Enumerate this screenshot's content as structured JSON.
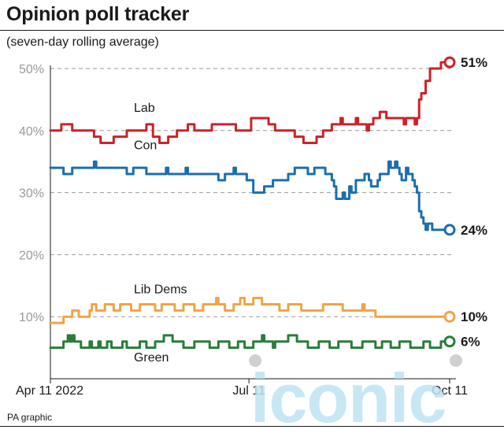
{
  "header": {
    "title": "Opinion poll tracker",
    "subtitle": "(seven-day rolling average)"
  },
  "footer": {
    "source": "PA graphic"
  },
  "watermark": {
    "text": "iconic"
  },
  "chart_data": {
    "type": "line",
    "ylim": [
      0,
      50
    ],
    "y_ticks": [
      {
        "value": 50,
        "label": "50%"
      },
      {
        "value": 40,
        "label": "40%"
      },
      {
        "value": 30,
        "label": "30%"
      },
      {
        "value": 20,
        "label": "20%"
      },
      {
        "value": 10,
        "label": "10%"
      }
    ],
    "grid": true,
    "x_ticks": [
      "Apr 11 2022",
      "Jul 11",
      "Oct 11"
    ],
    "x_range_days": [
      0,
      183
    ],
    "x_tick_days": [
      0,
      91,
      183
    ],
    "series": [
      {
        "name": "Lab",
        "color": "#cc2229",
        "end_label": "51%",
        "points": [
          [
            0,
            40
          ],
          [
            4,
            40
          ],
          [
            5,
            41
          ],
          [
            9,
            41
          ],
          [
            10,
            40
          ],
          [
            19,
            40
          ],
          [
            20,
            39
          ],
          [
            22,
            39
          ],
          [
            23,
            38
          ],
          [
            28,
            38
          ],
          [
            29,
            39
          ],
          [
            34,
            39
          ],
          [
            35,
            40
          ],
          [
            43,
            40
          ],
          [
            44,
            41
          ],
          [
            46,
            41
          ],
          [
            47,
            39
          ],
          [
            49,
            39
          ],
          [
            50,
            38
          ],
          [
            53,
            38
          ],
          [
            54,
            39
          ],
          [
            57,
            39
          ],
          [
            58,
            40
          ],
          [
            62,
            40
          ],
          [
            63,
            41
          ],
          [
            65,
            41
          ],
          [
            66,
            40
          ],
          [
            73,
            40
          ],
          [
            74,
            41
          ],
          [
            84,
            41
          ],
          [
            85,
            40
          ],
          [
            91,
            40
          ],
          [
            92,
            42
          ],
          [
            99,
            42
          ],
          [
            100,
            41
          ],
          [
            102,
            41
          ],
          [
            103,
            40
          ],
          [
            111,
            40
          ],
          [
            112,
            39
          ],
          [
            115,
            39
          ],
          [
            116,
            38
          ],
          [
            121,
            38
          ],
          [
            122,
            39
          ],
          [
            124,
            39
          ],
          [
            125,
            40
          ],
          [
            128,
            40
          ],
          [
            129,
            41
          ],
          [
            132,
            41
          ],
          [
            133,
            42
          ],
          [
            134,
            41
          ],
          [
            139,
            41
          ],
          [
            140,
            42
          ],
          [
            141,
            41
          ],
          [
            144,
            41
          ],
          [
            145,
            40
          ],
          [
            146,
            41
          ],
          [
            148,
            42
          ],
          [
            150,
            42
          ],
          [
            151,
            43
          ],
          [
            153,
            43
          ],
          [
            154,
            42
          ],
          [
            161,
            42
          ],
          [
            162,
            41
          ],
          [
            163,
            42
          ],
          [
            166,
            42
          ],
          [
            167,
            41
          ],
          [
            168,
            42
          ],
          [
            169,
            45
          ],
          [
            170,
            46
          ],
          [
            172,
            48
          ],
          [
            174,
            50
          ],
          [
            178,
            50
          ],
          [
            179,
            51
          ],
          [
            183,
            51
          ]
        ]
      },
      {
        "name": "Con",
        "color": "#1c6fad",
        "end_label": "24%",
        "points": [
          [
            0,
            34
          ],
          [
            5,
            34
          ],
          [
            6,
            33
          ],
          [
            9,
            33
          ],
          [
            10,
            34
          ],
          [
            19,
            34
          ],
          [
            20,
            35
          ],
          [
            21,
            34
          ],
          [
            34,
            34
          ],
          [
            35,
            33
          ],
          [
            37,
            33
          ],
          [
            38,
            34
          ],
          [
            43,
            34
          ],
          [
            44,
            33
          ],
          [
            52,
            33
          ],
          [
            53,
            34
          ],
          [
            54,
            33
          ],
          [
            61,
            33
          ],
          [
            62,
            34
          ],
          [
            63,
            33
          ],
          [
            76,
            33
          ],
          [
            77,
            32
          ],
          [
            79,
            32
          ],
          [
            80,
            33
          ],
          [
            83,
            33
          ],
          [
            84,
            34
          ],
          [
            85,
            33
          ],
          [
            89,
            33
          ],
          [
            90,
            32
          ],
          [
            92,
            32
          ],
          [
            93,
            30
          ],
          [
            97,
            30
          ],
          [
            98,
            31
          ],
          [
            101,
            31
          ],
          [
            102,
            32
          ],
          [
            108,
            32
          ],
          [
            109,
            33
          ],
          [
            111,
            33
          ],
          [
            112,
            34
          ],
          [
            117,
            34
          ],
          [
            118,
            33
          ],
          [
            120,
            33
          ],
          [
            121,
            34
          ],
          [
            125,
            34
          ],
          [
            126,
            33
          ],
          [
            128,
            33
          ],
          [
            129,
            32
          ],
          [
            130,
            31
          ],
          [
            131,
            29
          ],
          [
            133,
            29
          ],
          [
            134,
            30
          ],
          [
            135,
            29
          ],
          [
            137,
            31
          ],
          [
            138,
            30
          ],
          [
            140,
            32
          ],
          [
            143,
            32
          ],
          [
            144,
            33
          ],
          [
            146,
            32
          ],
          [
            147,
            31
          ],
          [
            149,
            31
          ],
          [
            150,
            32
          ],
          [
            151,
            33
          ],
          [
            154,
            33
          ],
          [
            155,
            35
          ],
          [
            156,
            34
          ],
          [
            158,
            35
          ],
          [
            159,
            34
          ],
          [
            160,
            33
          ],
          [
            161,
            32
          ],
          [
            163,
            34
          ],
          [
            164,
            33
          ],
          [
            166,
            32
          ],
          [
            167,
            31
          ],
          [
            168,
            30
          ],
          [
            169,
            27
          ],
          [
            170,
            26
          ],
          [
            171,
            25
          ],
          [
            172,
            24
          ],
          [
            173,
            25
          ],
          [
            175,
            24
          ],
          [
            183,
            24
          ]
        ]
      },
      {
        "name": "Lib Dems",
        "color": "#f0a445",
        "end_label": "10%",
        "points": [
          [
            0,
            9
          ],
          [
            5,
            9
          ],
          [
            6,
            10
          ],
          [
            9,
            10
          ],
          [
            10,
            11
          ],
          [
            12,
            11
          ],
          [
            13,
            10
          ],
          [
            17,
            10
          ],
          [
            18,
            11
          ],
          [
            19,
            12
          ],
          [
            21,
            11
          ],
          [
            24,
            11
          ],
          [
            25,
            12
          ],
          [
            28,
            12
          ],
          [
            29,
            11
          ],
          [
            31,
            11
          ],
          [
            32,
            12
          ],
          [
            36,
            12
          ],
          [
            37,
            11
          ],
          [
            40,
            11
          ],
          [
            41,
            12
          ],
          [
            47,
            12
          ],
          [
            48,
            11
          ],
          [
            50,
            11
          ],
          [
            51,
            12
          ],
          [
            56,
            12
          ],
          [
            57,
            11
          ],
          [
            60,
            11
          ],
          [
            61,
            12
          ],
          [
            65,
            12
          ],
          [
            66,
            11
          ],
          [
            69,
            11
          ],
          [
            70,
            12
          ],
          [
            75,
            12
          ],
          [
            76,
            13
          ],
          [
            77,
            12
          ],
          [
            79,
            12
          ],
          [
            80,
            11
          ],
          [
            83,
            11
          ],
          [
            84,
            12
          ],
          [
            86,
            12
          ],
          [
            87,
            13
          ],
          [
            89,
            12
          ],
          [
            92,
            12
          ],
          [
            93,
            13
          ],
          [
            96,
            13
          ],
          [
            97,
            12
          ],
          [
            104,
            12
          ],
          [
            105,
            11
          ],
          [
            108,
            11
          ],
          [
            109,
            12
          ],
          [
            114,
            12
          ],
          [
            115,
            11
          ],
          [
            124,
            11
          ],
          [
            125,
            12
          ],
          [
            133,
            12
          ],
          [
            134,
            11
          ],
          [
            142,
            11
          ],
          [
            143,
            12
          ],
          [
            144,
            11
          ],
          [
            148,
            11
          ],
          [
            149,
            10
          ],
          [
            183,
            10
          ]
        ]
      },
      {
        "name": "Green",
        "color": "#2a7d3a",
        "end_label": "6%",
        "points": [
          [
            0,
            5
          ],
          [
            5,
            5
          ],
          [
            6,
            6
          ],
          [
            7,
            6
          ],
          [
            8,
            7
          ],
          [
            9,
            6
          ],
          [
            10,
            7
          ],
          [
            11,
            6
          ],
          [
            13,
            6
          ],
          [
            14,
            5
          ],
          [
            17,
            5
          ],
          [
            18,
            6
          ],
          [
            19,
            5
          ],
          [
            21,
            5
          ],
          [
            22,
            6
          ],
          [
            23,
            5
          ],
          [
            25,
            5
          ],
          [
            26,
            6
          ],
          [
            28,
            5
          ],
          [
            32,
            5
          ],
          [
            33,
            6
          ],
          [
            35,
            5
          ],
          [
            40,
            5
          ],
          [
            41,
            6
          ],
          [
            43,
            6
          ],
          [
            44,
            5
          ],
          [
            47,
            5
          ],
          [
            48,
            6
          ],
          [
            51,
            6
          ],
          [
            52,
            7
          ],
          [
            55,
            7
          ],
          [
            56,
            6
          ],
          [
            60,
            6
          ],
          [
            61,
            5
          ],
          [
            65,
            5
          ],
          [
            66,
            6
          ],
          [
            72,
            6
          ],
          [
            73,
            5
          ],
          [
            76,
            5
          ],
          [
            77,
            6
          ],
          [
            81,
            6
          ],
          [
            82,
            5
          ],
          [
            85,
            5
          ],
          [
            86,
            6
          ],
          [
            88,
            6
          ],
          [
            89,
            5
          ],
          [
            92,
            5
          ],
          [
            93,
            6
          ],
          [
            96,
            6
          ],
          [
            97,
            7
          ],
          [
            98,
            6
          ],
          [
            101,
            6
          ],
          [
            102,
            5
          ],
          [
            103,
            6
          ],
          [
            108,
            6
          ],
          [
            109,
            7
          ],
          [
            112,
            7
          ],
          [
            113,
            6
          ],
          [
            117,
            6
          ],
          [
            118,
            5
          ],
          [
            122,
            5
          ],
          [
            123,
            6
          ],
          [
            127,
            6
          ],
          [
            128,
            5
          ],
          [
            131,
            5
          ],
          [
            132,
            6
          ],
          [
            137,
            6
          ],
          [
            138,
            5
          ],
          [
            142,
            5
          ],
          [
            143,
            6
          ],
          [
            148,
            6
          ],
          [
            149,
            5
          ],
          [
            151,
            5
          ],
          [
            152,
            6
          ],
          [
            155,
            6
          ],
          [
            156,
            5
          ],
          [
            159,
            5
          ],
          [
            160,
            6
          ],
          [
            164,
            6
          ],
          [
            165,
            5
          ],
          [
            170,
            5
          ],
          [
            171,
            6
          ],
          [
            173,
            6
          ],
          [
            174,
            5
          ],
          [
            178,
            5
          ],
          [
            179,
            6
          ],
          [
            183,
            6
          ]
        ]
      }
    ],
    "inline_labels": [
      {
        "series": "Lab",
        "text": "Lab",
        "day": 35,
        "value": 43
      },
      {
        "series": "Con",
        "text": "Con",
        "day": 35,
        "value": 37
      },
      {
        "series": "Lib Dems",
        "text": "Lib Dems",
        "day": 35,
        "value": 13.8
      },
      {
        "series": "Green",
        "text": "Green",
        "day": 35,
        "value": 2.8
      }
    ]
  }
}
